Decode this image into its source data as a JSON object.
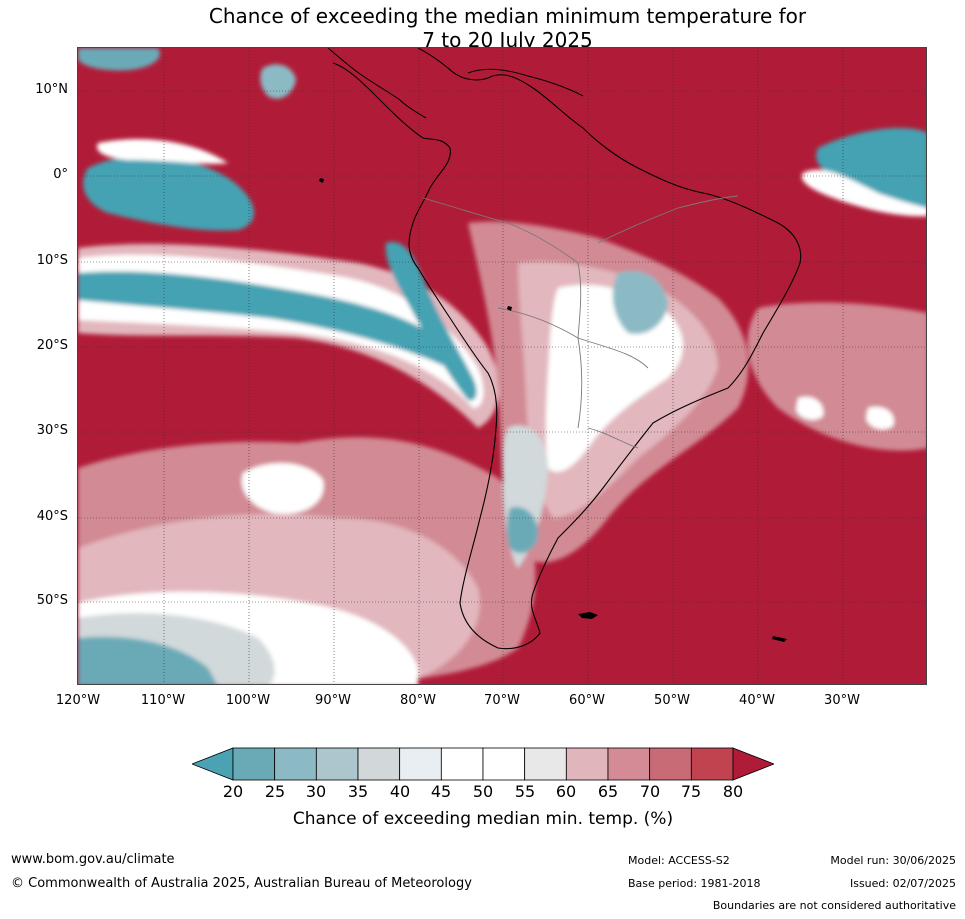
{
  "title": {
    "line1": "Chance of exceeding the median minimum temperature for",
    "line2": "7 to 20 July 2025"
  },
  "map": {
    "lat_labels": [
      "10°N",
      "0°",
      "10°S",
      "20°S",
      "30°S",
      "40°S",
      "50°S"
    ],
    "lon_labels": [
      "120°W",
      "110°W",
      "100°W",
      "90°W",
      "80°W",
      "70°W",
      "60°W",
      "50°W",
      "40°W",
      "30°W"
    ],
    "colors": {
      "high": "#b01c38",
      "mid_high": "#d28a94",
      "light_pink": "#e2b7bd",
      "neutral": "#ffffff",
      "low_teal": "#44a2b2",
      "gray": "#d1d9db",
      "border": "#000000",
      "country_border": "#7a7a7a"
    }
  },
  "colorbar": {
    "ticks": [
      "20",
      "25",
      "30",
      "35",
      "40",
      "45",
      "50",
      "55",
      "60",
      "65",
      "70",
      "75",
      "80"
    ],
    "colors": [
      "#4aa2b2",
      "#6aaab7",
      "#8bbac5",
      "#abc6cc",
      "#d2d8da",
      "#e8eef1",
      "#ffffff",
      "#ffffff",
      "#e8e8e8",
      "#e0b6bc",
      "#d48b95",
      "#c86b76",
      "#c0434f",
      "#b01c38"
    ],
    "label": "Chance of exceeding median min. temp. (%)"
  },
  "footer": {
    "url": "www.bom.gov.au/climate",
    "copyright": "© Commonwealth of Australia 2025, Australian Bureau of Meteorology",
    "model": "Model: ACCESS-S2",
    "base_period": "Base period: 1981-2018",
    "model_run": "Model run: 30/06/2025",
    "issued": "Issued: 02/07/2025",
    "disclaimer": "Boundaries are not considered authoritative"
  }
}
